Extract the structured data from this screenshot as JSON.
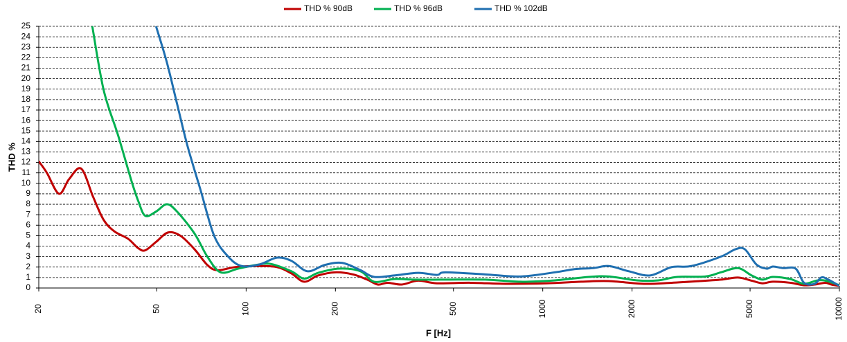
{
  "chart_data": {
    "type": "line",
    "x_label": "F [Hz]",
    "y_label": "THD %",
    "xlim": [
      20,
      10000
    ],
    "xticks": [
      20,
      50,
      100,
      200,
      500,
      1000,
      2000,
      5000,
      10000
    ],
    "xscale": "log",
    "ylim": [
      0,
      25
    ],
    "yticks": [
      0,
      1,
      2,
      3,
      4,
      5,
      6,
      7,
      8,
      9,
      10,
      11,
      12,
      13,
      14,
      15,
      16,
      17,
      18,
      19,
      20,
      21,
      22,
      23,
      24,
      25
    ],
    "grid": true,
    "legend": "top",
    "series": [
      {
        "name": "THD % 90dB",
        "color": "#c00000",
        "x": [
          20,
          21.3,
          23.4,
          25.3,
          27.8,
          30.5,
          33.1,
          36,
          40,
          43.3,
          45.7,
          49.7,
          54.5,
          60,
          67,
          74,
          80,
          92,
          108,
          127,
          142,
          157,
          175,
          200,
          229,
          256,
          278,
          300,
          335,
          380,
          440,
          570,
          750,
          1030,
          1350,
          1670,
          2190,
          2720,
          3380,
          3990,
          4550,
          5060,
          5500,
          5970,
          6830,
          7600,
          8250,
          8950,
          9400,
          10000
        ],
        "values": [
          12.1,
          11.0,
          9.0,
          10.4,
          11.4,
          8.7,
          6.5,
          5.4,
          4.7,
          3.8,
          3.6,
          4.4,
          5.3,
          5.0,
          3.7,
          2.2,
          1.7,
          2.0,
          2.1,
          2.0,
          1.4,
          0.6,
          1.2,
          1.5,
          1.3,
          0.8,
          0.33,
          0.5,
          0.33,
          0.7,
          0.45,
          0.5,
          0.4,
          0.45,
          0.6,
          0.66,
          0.4,
          0.5,
          0.66,
          0.8,
          1.0,
          0.7,
          0.45,
          0.6,
          0.5,
          0.26,
          0.33,
          0.5,
          0.33,
          0.2
        ]
      },
      {
        "name": "THD % 96dB",
        "color": "#00b050",
        "x": [
          30.3,
          33.1,
          37,
          41,
          43.3,
          45.7,
          49.7,
          54,
          58.5,
          67,
          74,
          82,
          94,
          108,
          121,
          142,
          157,
          175,
          206,
          243,
          270,
          316,
          370,
          470,
          640,
          840,
          1100,
          1430,
          1670,
          2080,
          2450,
          2840,
          3530,
          3990,
          4550,
          5060,
          5500,
          5970,
          6830,
          7600,
          8450,
          9100,
          10000
        ],
        "values": [
          25,
          18.9,
          14.6,
          10.3,
          8.3,
          6.9,
          7.3,
          8.0,
          7.3,
          5.2,
          3.0,
          1.5,
          1.85,
          2.2,
          2.3,
          1.6,
          0.9,
          1.45,
          1.85,
          1.6,
          0.6,
          0.86,
          0.8,
          0.8,
          0.8,
          0.6,
          0.73,
          1.06,
          1.1,
          0.73,
          0.73,
          1.06,
          1.1,
          1.5,
          1.9,
          1.2,
          0.8,
          1.06,
          0.86,
          0.4,
          0.73,
          0.66,
          0.26
        ]
      },
      {
        "name": "THD % 102dB",
        "color": "#1f6fb0",
        "x": [
          49.7,
          54,
          58.5,
          63.4,
          70.3,
          78,
          87,
          96.5,
          111,
          127,
          142,
          161,
          184,
          211,
          243,
          270,
          316,
          380,
          440,
          470,
          640,
          840,
          1100,
          1280,
          1480,
          1670,
          1950,
          2300,
          2720,
          3170,
          3990,
          4460,
          4800,
          5250,
          5680,
          5970,
          6460,
          7120,
          7600,
          8250,
          8680,
          9100,
          10000
        ],
        "values": [
          25,
          21.6,
          17.6,
          13.6,
          9.3,
          5.0,
          3.0,
          2.1,
          2.25,
          2.9,
          2.6,
          1.6,
          2.2,
          2.4,
          1.7,
          1.06,
          1.2,
          1.45,
          1.25,
          1.5,
          1.3,
          1.1,
          1.5,
          1.8,
          1.9,
          2.1,
          1.6,
          1.2,
          2.0,
          2.1,
          3.0,
          3.7,
          3.7,
          2.25,
          1.85,
          2.05,
          1.9,
          1.85,
          0.5,
          0.4,
          1.0,
          0.86,
          0.2
        ]
      }
    ]
  }
}
